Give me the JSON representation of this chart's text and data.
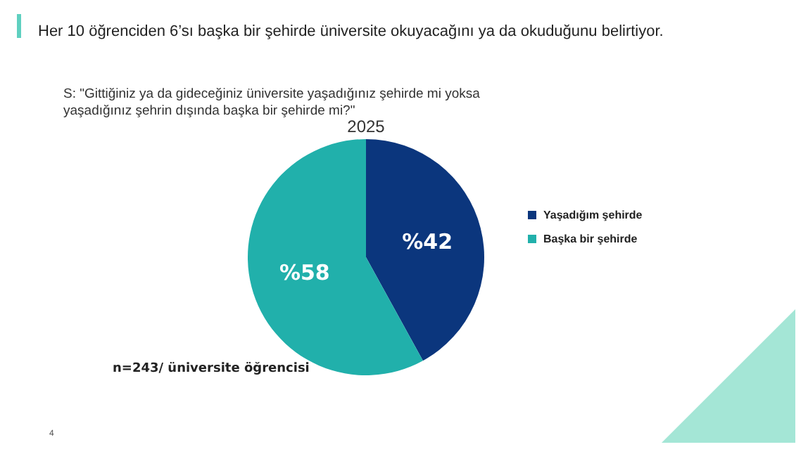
{
  "chart_data": {
    "type": "pie",
    "title": "Her 10 öğrenciden 6’sı başka bir şehirde üniversite okuyacağını ya da okuduğunu belirtiyor.",
    "subtitle": "S: \"Gittiğiniz ya da gideceğiniz üniversite yaşadığınız şehirde mi yoksa yaşadığınız şehrin dışında başka bir şehirde mi?\"",
    "annotations": [
      "2025",
      "n=243/ üniversite öğrencisi",
      "4"
    ],
    "categories": [
      "Yaşadığım şehirde",
      "Başka bir şehirde"
    ],
    "values": [
      42,
      58
    ],
    "colors": [
      "#0b367d",
      "#21b0ab"
    ],
    "value_labels": [
      "%42",
      "%58"
    ],
    "legend": "right"
  }
}
